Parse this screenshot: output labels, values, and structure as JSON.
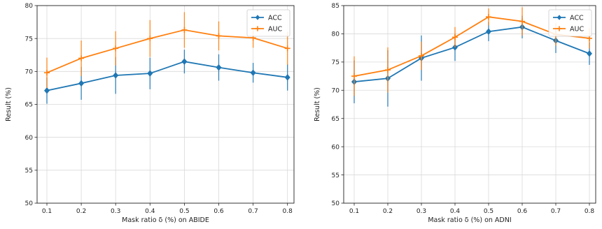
{
  "chart_data": [
    {
      "type": "line",
      "x": [
        0.1,
        0.2,
        0.3,
        0.4,
        0.5,
        0.6,
        0.7,
        0.8
      ],
      "xticks": [
        "0.1",
        "0.2",
        "0.3",
        "0.4",
        "0.5",
        "0.6",
        "0.7",
        "0.8"
      ],
      "xlabel": "Mask ratio δ (%) on ABIDE",
      "ylabel": "Result (%)",
      "ylim": [
        50,
        80
      ],
      "yticks": [
        "50",
        "55",
        "60",
        "65",
        "70",
        "75",
        "80"
      ],
      "grid": true,
      "legend": "top-right",
      "series": [
        {
          "name": "ACC",
          "color": "#1f77b4",
          "marker": "diamond",
          "values": [
            67.1,
            68.2,
            69.4,
            69.7,
            71.5,
            70.6,
            69.8,
            69.1
          ],
          "error": [
            2.0,
            2.5,
            2.8,
            2.4,
            1.8,
            2.0,
            1.5,
            2.0
          ]
        },
        {
          "name": "AUC",
          "color": "#ff7f0e",
          "marker": "plus",
          "values": [
            69.8,
            72.0,
            73.5,
            75.0,
            76.3,
            75.4,
            75.1,
            73.5
          ],
          "error": [
            2.3,
            2.7,
            2.6,
            2.8,
            2.7,
            2.2,
            1.5,
            2.5
          ]
        }
      ]
    },
    {
      "type": "line",
      "x": [
        0.1,
        0.2,
        0.3,
        0.4,
        0.5,
        0.6,
        0.7,
        0.8
      ],
      "xticks": [
        "0.1",
        "0.2",
        "0.3",
        "0.4",
        "0.5",
        "0.6",
        "0.7",
        "0.8"
      ],
      "xlabel": "Mask ratio δ (%) on ADNI",
      "ylabel": "Result (%)",
      "ylim": [
        50,
        85
      ],
      "yticks": [
        "50",
        "55",
        "60",
        "65",
        "70",
        "75",
        "80",
        "85"
      ],
      "grid": true,
      "legend": "top-right",
      "series": [
        {
          "name": "ACC",
          "color": "#1f77b4",
          "marker": "diamond",
          "values": [
            71.5,
            72.1,
            75.7,
            77.6,
            80.4,
            81.2,
            78.8,
            76.5
          ],
          "error": [
            3.8,
            5.0,
            4.0,
            2.4,
            1.7,
            2.0,
            2.2,
            2.0
          ]
        },
        {
          "name": "AUC",
          "color": "#ff7f0e",
          "marker": "plus",
          "values": [
            72.5,
            73.6,
            76.1,
            79.4,
            83.0,
            82.2,
            79.9,
            79.2
          ],
          "error": [
            3.5,
            4.0,
            2.5,
            1.8,
            1.5,
            2.5,
            2.0,
            1.8
          ]
        }
      ]
    }
  ]
}
